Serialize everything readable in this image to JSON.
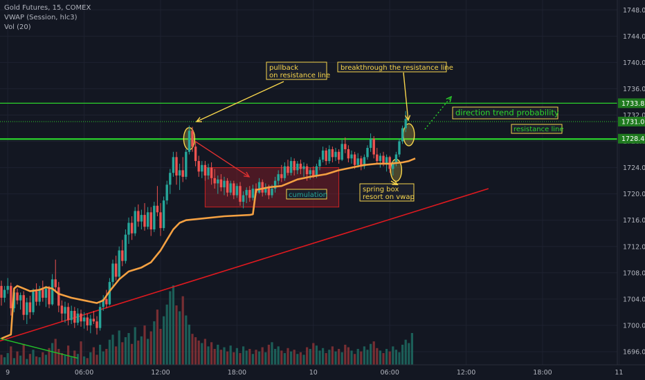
{
  "legend": {
    "symbol": "Gold Futures, 15, COMEX",
    "vwap": "VWAP (Session, hlc3)",
    "vol": "Vol (20)"
  },
  "colors": {
    "background": "#131722",
    "grid": "#1e2230",
    "up": "#26a69a",
    "down": "#ef5350",
    "vwap": "#f5a142",
    "resistance": "#2cd62c",
    "trendline": "#e0191f",
    "annotation": "#f7d54c"
  },
  "chart_data": {
    "type": "candlestick",
    "title": "Gold Futures, 15, COMEX",
    "y_range": [
      1694,
      1749.5
    ],
    "y_ticks": [
      "1748.0",
      "1744.0",
      "1740.0",
      "1736.0",
      "1732.0",
      "1728.0",
      "1724.0",
      "1720.0",
      "1716.0",
      "1712.0",
      "1708.0",
      "1704.0",
      "1700.0",
      "1696.0"
    ],
    "x_ticks": [
      {
        "label": "9",
        "bar": 2
      },
      {
        "label": "06:00",
        "bar": 26
      },
      {
        "label": "12:00",
        "bar": 50
      },
      {
        "label": "18:00",
        "bar": 74
      },
      {
        "label": "10",
        "bar": 98
      },
      {
        "label": "06:00",
        "bar": 122
      },
      {
        "label": "12:00",
        "bar": 146
      },
      {
        "label": "18:00",
        "bar": 170
      },
      {
        "label": "11",
        "bar": 194
      },
      {
        "label": "06:00",
        "bar": 218
      }
    ],
    "price_labels": [
      {
        "price": 1733.8,
        "text": "1733.8"
      },
      {
        "price": 1731.0,
        "text": "1731.0"
      },
      {
        "price": 1728.4,
        "text": "1728.4"
      }
    ],
    "horizontal_lines": [
      {
        "price": 1733.8,
        "style": "solid"
      },
      {
        "price": 1731.0,
        "style": "dotted"
      },
      {
        "price": 1728.4,
        "style": "solid"
      }
    ],
    "candles": [
      [
        1706.0,
        1706.8,
        1703.0,
        1704.2
      ],
      [
        1704.2,
        1706.0,
        1703.5,
        1705.4
      ],
      [
        1705.4,
        1707.2,
        1704.8,
        1706.0
      ],
      [
        1706.0,
        1706.5,
        1701.5,
        1702.6
      ],
      [
        1702.6,
        1705.8,
        1702.0,
        1705.0
      ],
      [
        1705.0,
        1705.6,
        1703.2,
        1703.8
      ],
      [
        1703.8,
        1705.0,
        1702.4,
        1704.6
      ],
      [
        1704.6,
        1705.2,
        1700.8,
        1701.6
      ],
      [
        1701.6,
        1704.2,
        1700.2,
        1703.5
      ],
      [
        1703.5,
        1704.5,
        1701.0,
        1702.0
      ],
      [
        1702.0,
        1705.6,
        1701.6,
        1705.2
      ],
      [
        1705.2,
        1706.4,
        1703.0,
        1703.6
      ],
      [
        1703.6,
        1706.0,
        1703.0,
        1705.5
      ],
      [
        1705.5,
        1706.8,
        1703.6,
        1704.2
      ],
      [
        1704.2,
        1706.0,
        1702.8,
        1705.6
      ],
      [
        1705.6,
        1706.0,
        1702.6,
        1703.2
      ],
      [
        1703.2,
        1707.8,
        1703.0,
        1707.0
      ],
      [
        1707.0,
        1710.0,
        1705.0,
        1705.8
      ],
      [
        1705.8,
        1706.6,
        1702.0,
        1703.0
      ],
      [
        1703.0,
        1703.8,
        1700.6,
        1701.8
      ],
      [
        1701.8,
        1703.6,
        1700.4,
        1702.8
      ],
      [
        1702.8,
        1703.4,
        1700.0,
        1700.8
      ],
      [
        1700.8,
        1703.0,
        1700.2,
        1702.2
      ],
      [
        1702.2,
        1702.8,
        1699.6,
        1700.4
      ],
      [
        1700.4,
        1702.6,
        1700.0,
        1701.8
      ],
      [
        1701.8,
        1702.4,
        1699.8,
        1700.6
      ],
      [
        1700.6,
        1702.0,
        1699.5,
        1701.2
      ],
      [
        1701.2,
        1701.8,
        1699.2,
        1700.0
      ],
      [
        1700.0,
        1701.6,
        1698.8,
        1701.0
      ],
      [
        1701.0,
        1702.2,
        1700.2,
        1700.6
      ],
      [
        1700.6,
        1701.4,
        1698.6,
        1699.6
      ],
      [
        1699.6,
        1703.5,
        1699.2,
        1702.8
      ],
      [
        1702.8,
        1704.6,
        1702.2,
        1704.0
      ],
      [
        1704.0,
        1705.4,
        1702.6,
        1703.2
      ],
      [
        1703.2,
        1707.2,
        1703.0,
        1706.6
      ],
      [
        1706.6,
        1710.0,
        1706.0,
        1709.4
      ],
      [
        1709.4,
        1710.6,
        1706.8,
        1707.4
      ],
      [
        1707.4,
        1712.0,
        1707.0,
        1711.4
      ],
      [
        1711.4,
        1713.0,
        1709.0,
        1709.8
      ],
      [
        1709.8,
        1714.6,
        1709.4,
        1713.8
      ],
      [
        1713.8,
        1716.4,
        1712.4,
        1715.6
      ],
      [
        1715.6,
        1716.6,
        1713.0,
        1714.0
      ],
      [
        1714.0,
        1718.0,
        1713.6,
        1717.4
      ],
      [
        1717.4,
        1718.4,
        1715.0,
        1715.8
      ],
      [
        1715.8,
        1717.6,
        1714.6,
        1716.8
      ],
      [
        1716.8,
        1718.6,
        1714.4,
        1715.0
      ],
      [
        1715.0,
        1718.0,
        1714.6,
        1717.2
      ],
      [
        1717.2,
        1718.0,
        1713.6,
        1714.6
      ],
      [
        1714.6,
        1718.8,
        1714.2,
        1718.2
      ],
      [
        1718.2,
        1721.2,
        1716.6,
        1717.2
      ],
      [
        1717.2,
        1718.6,
        1713.6,
        1714.8
      ],
      [
        1714.8,
        1719.6,
        1714.4,
        1719.0
      ],
      [
        1719.0,
        1722.0,
        1718.4,
        1721.4
      ],
      [
        1721.4,
        1723.8,
        1720.0,
        1723.2
      ],
      [
        1723.2,
        1726.4,
        1722.6,
        1725.6
      ],
      [
        1725.6,
        1726.4,
        1721.4,
        1722.8
      ],
      [
        1722.8,
        1724.6,
        1720.6,
        1723.6
      ],
      [
        1723.6,
        1725.6,
        1721.8,
        1722.6
      ],
      [
        1722.6,
        1726.8,
        1722.2,
        1726.4
      ],
      [
        1726.4,
        1730.4,
        1726.0,
        1729.6
      ],
      [
        1729.6,
        1730.2,
        1726.4,
        1727.2
      ],
      [
        1727.2,
        1728.0,
        1724.2,
        1725.0
      ],
      [
        1725.0,
        1725.8,
        1722.6,
        1723.4
      ],
      [
        1723.4,
        1725.0,
        1722.4,
        1724.4
      ],
      [
        1724.4,
        1725.0,
        1722.0,
        1722.8
      ],
      [
        1722.8,
        1724.6,
        1722.2,
        1724.0
      ],
      [
        1724.0,
        1724.8,
        1721.4,
        1722.4
      ],
      [
        1722.4,
        1723.8,
        1720.8,
        1721.6
      ],
      [
        1721.6,
        1722.8,
        1720.0,
        1722.2
      ],
      [
        1722.2,
        1723.0,
        1720.4,
        1721.0
      ],
      [
        1721.0,
        1722.6,
        1719.8,
        1722.0
      ],
      [
        1722.0,
        1722.4,
        1719.6,
        1720.2
      ],
      [
        1720.2,
        1722.0,
        1719.8,
        1721.6
      ],
      [
        1721.6,
        1722.0,
        1719.2,
        1719.8
      ],
      [
        1719.8,
        1721.6,
        1719.4,
        1721.2
      ],
      [
        1721.2,
        1721.8,
        1718.2,
        1718.8
      ],
      [
        1718.8,
        1720.4,
        1717.8,
        1719.8
      ],
      [
        1719.8,
        1721.0,
        1718.6,
        1720.6
      ],
      [
        1720.6,
        1721.2,
        1718.8,
        1719.4
      ],
      [
        1719.4,
        1721.4,
        1719.0,
        1720.8
      ],
      [
        1720.8,
        1721.6,
        1719.8,
        1720.2
      ],
      [
        1720.2,
        1722.4,
        1720.0,
        1721.8
      ],
      [
        1721.8,
        1722.2,
        1719.6,
        1720.2
      ],
      [
        1720.2,
        1721.6,
        1719.8,
        1721.0
      ],
      [
        1721.0,
        1721.4,
        1719.2,
        1719.8
      ],
      [
        1719.8,
        1721.4,
        1719.4,
        1720.8
      ],
      [
        1720.8,
        1722.6,
        1720.2,
        1722.0
      ],
      [
        1722.0,
        1723.6,
        1721.4,
        1723.0
      ],
      [
        1723.0,
        1724.4,
        1721.8,
        1722.4
      ],
      [
        1722.4,
        1724.8,
        1722.0,
        1724.2
      ],
      [
        1724.2,
        1725.2,
        1722.8,
        1723.2
      ],
      [
        1723.2,
        1725.6,
        1722.8,
        1725.0
      ],
      [
        1725.0,
        1725.4,
        1722.8,
        1723.6
      ],
      [
        1723.6,
        1725.0,
        1723.0,
        1724.6
      ],
      [
        1724.6,
        1725.2,
        1723.0,
        1723.8
      ],
      [
        1723.8,
        1724.8,
        1722.6,
        1724.2
      ],
      [
        1724.2,
        1724.6,
        1722.0,
        1723.0
      ],
      [
        1723.0,
        1724.0,
        1722.2,
        1723.6
      ],
      [
        1723.6,
        1724.2,
        1722.4,
        1722.8
      ],
      [
        1722.8,
        1724.6,
        1722.4,
        1724.2
      ],
      [
        1724.2,
        1725.6,
        1723.6,
        1725.2
      ],
      [
        1725.2,
        1727.2,
        1724.8,
        1726.6
      ],
      [
        1726.6,
        1727.0,
        1724.4,
        1725.0
      ],
      [
        1725.0,
        1727.4,
        1724.6,
        1726.8
      ],
      [
        1726.8,
        1727.2,
        1724.8,
        1725.6
      ],
      [
        1725.6,
        1727.0,
        1725.0,
        1726.4
      ],
      [
        1726.4,
        1726.8,
        1724.6,
        1725.2
      ],
      [
        1725.2,
        1728.2,
        1725.0,
        1727.6
      ],
      [
        1727.6,
        1728.6,
        1726.2,
        1726.8
      ],
      [
        1726.8,
        1727.4,
        1724.8,
        1725.4
      ],
      [
        1725.4,
        1726.6,
        1724.6,
        1726.0
      ],
      [
        1726.0,
        1726.4,
        1723.8,
        1724.4
      ],
      [
        1724.4,
        1726.2,
        1724.0,
        1725.4
      ],
      [
        1725.4,
        1725.8,
        1723.6,
        1724.2
      ],
      [
        1724.2,
        1726.0,
        1723.8,
        1725.6
      ],
      [
        1725.6,
        1727.4,
        1725.2,
        1727.0
      ],
      [
        1727.0,
        1729.2,
        1726.4,
        1728.4
      ],
      [
        1728.4,
        1728.8,
        1725.4,
        1726.0
      ],
      [
        1726.0,
        1727.0,
        1724.6,
        1725.0
      ],
      [
        1725.0,
        1726.2,
        1724.0,
        1725.8
      ],
      [
        1725.8,
        1726.4,
        1724.2,
        1724.6
      ],
      [
        1724.6,
        1726.0,
        1723.4,
        1725.6
      ],
      [
        1725.6,
        1725.8,
        1723.2,
        1723.8
      ],
      [
        1723.8,
        1725.0,
        1722.8,
        1724.6
      ],
      [
        1724.6,
        1726.4,
        1724.2,
        1726.0
      ],
      [
        1726.0,
        1728.4,
        1725.6,
        1728.0
      ],
      [
        1728.0,
        1730.4,
        1727.6,
        1730.0
      ],
      [
        1730.0,
        1732.6,
        1729.4,
        1731.4
      ]
    ],
    "volume": [
      12,
      9,
      14,
      22,
      8,
      16,
      11,
      25,
      7,
      13,
      18,
      10,
      9,
      15,
      12,
      20,
      26,
      31,
      19,
      14,
      11,
      23,
      9,
      17,
      13,
      28,
      10,
      8,
      15,
      21,
      12,
      24,
      16,
      19,
      30,
      36,
      22,
      41,
      27,
      33,
      38,
      25,
      45,
      29,
      34,
      47,
      31,
      40,
      52,
      66,
      43,
      58,
      72,
      88,
      95,
      71,
      64,
      82,
      59,
      48,
      37,
      33,
      29,
      26,
      31,
      22,
      27,
      19,
      24,
      18,
      21,
      16,
      23,
      15,
      20,
      14,
      22,
      17,
      19,
      13,
      18,
      16,
      21,
      15,
      24,
      27,
      19,
      22,
      17,
      14,
      20,
      16,
      18,
      13,
      15,
      12,
      21,
      19,
      26,
      23,
      17,
      20,
      14,
      18,
      22,
      16,
      19,
      15,
      24,
      21,
      17,
      13,
      19,
      16,
      22,
      18,
      25,
      28,
      20,
      17,
      14,
      19,
      16,
      22,
      18,
      15,
      24,
      30,
      26,
      38
    ],
    "vwap": [
      [
        0,
        1698.0
      ],
      [
        3,
        1698.6
      ],
      [
        4,
        1705.6
      ],
      [
        5,
        1706.0
      ],
      [
        7,
        1705.6
      ],
      [
        9,
        1705.2
      ],
      [
        12,
        1705.4
      ],
      [
        14,
        1705.8
      ],
      [
        16,
        1705.6
      ],
      [
        18,
        1704.8
      ],
      [
        22,
        1704.2
      ],
      [
        26,
        1703.8
      ],
      [
        30,
        1703.4
      ],
      [
        32,
        1703.8
      ],
      [
        34,
        1705.2
      ],
      [
        37,
        1707.0
      ],
      [
        40,
        1708.2
      ],
      [
        44,
        1708.8
      ],
      [
        47,
        1709.6
      ],
      [
        50,
        1711.4
      ],
      [
        52,
        1713.0
      ],
      [
        54,
        1714.6
      ],
      [
        56,
        1715.6
      ],
      [
        58,
        1716.0
      ],
      [
        62,
        1716.2
      ],
      [
        70,
        1716.6
      ],
      [
        78,
        1716.8
      ],
      [
        79,
        1716.9
      ],
      [
        80,
        1720.6
      ],
      [
        84,
        1721.0
      ],
      [
        88,
        1721.2
      ],
      [
        90,
        1721.6
      ],
      [
        93,
        1722.2
      ],
      [
        97,
        1722.6
      ],
      [
        102,
        1723.0
      ],
      [
        106,
        1723.6
      ],
      [
        110,
        1724.0
      ],
      [
        114,
        1724.4
      ],
      [
        118,
        1724.6
      ],
      [
        122,
        1724.6
      ],
      [
        126,
        1724.8
      ],
      [
        128,
        1725.0
      ],
      [
        130,
        1725.4
      ]
    ],
    "resistance_line": {
      "price": 1728.4,
      "label": "resistance line"
    },
    "trendline": [
      [
        -2,
        1697.4
      ],
      [
        153,
        1720.8
      ]
    ],
    "secondary_line": [
      [
        -2,
        1698.2
      ],
      [
        24,
        1695.0
      ]
    ],
    "annotations": [
      {
        "text": [
          "pullback",
          "on resistance line"
        ]
      },
      {
        "text": [
          "breakthrough the resistance line"
        ]
      },
      {
        "text": [
          "direction trend probability"
        ]
      },
      {
        "text": [
          "spring box",
          "resort on vwap"
        ]
      },
      {
        "text": [
          "cumulation"
        ]
      }
    ]
  }
}
